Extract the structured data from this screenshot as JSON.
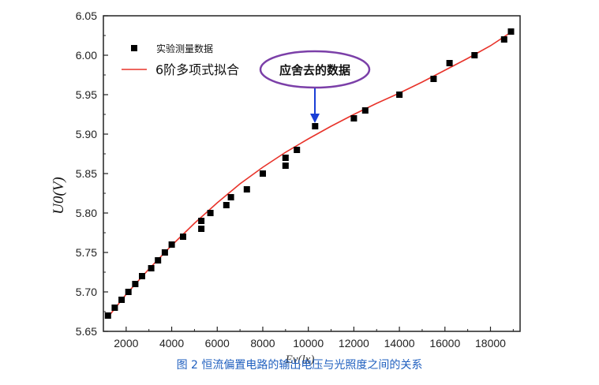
{
  "chart_data": {
    "type": "scatter",
    "xlim": [
      1000,
      19300
    ],
    "ylim": [
      5.65,
      6.05
    ],
    "x_ticks": [
      2000,
      4000,
      6000,
      8000,
      10000,
      12000,
      14000,
      16000,
      18000
    ],
    "y_ticks": [
      "5.65",
      "5.70",
      "5.75",
      "5.80",
      "5.85",
      "5.90",
      "5.95",
      "6.00",
      "6.05"
    ],
    "ylabel": "U0(V)",
    "xlabel": "Ev(lx)",
    "grid": false,
    "legend_position": "top-left",
    "series": [
      {
        "name": "实验测量数据",
        "marker": "square",
        "color": "#000000",
        "x": [
          1200,
          1500,
          1800,
          2100,
          2400,
          2700,
          3100,
          3400,
          3700,
          4000,
          4500,
          5300,
          5300,
          5700,
          6400,
          6600,
          7300,
          8000,
          9000,
          9000,
          9500,
          10300,
          12000,
          12500,
          14000,
          15500,
          16200,
          17300,
          18600,
          18900
        ],
        "y": [
          5.67,
          5.68,
          5.69,
          5.7,
          5.71,
          5.72,
          5.73,
          5.74,
          5.75,
          5.76,
          5.77,
          5.78,
          5.79,
          5.8,
          5.81,
          5.82,
          5.83,
          5.85,
          5.86,
          5.87,
          5.88,
          5.91,
          5.92,
          5.93,
          5.95,
          5.97,
          5.99,
          6.0,
          6.02,
          6.03
        ]
      },
      {
        "name": "6阶多项式拟合",
        "type": "line",
        "color": "#e8332a",
        "x": [
          1200,
          2000,
          3000,
          4000,
          5000,
          6000,
          7000,
          8000,
          9000,
          10000,
          11000,
          12000,
          13000,
          14000,
          15000,
          16000,
          17000,
          18000,
          19000
        ],
        "y": [
          5.668,
          5.697,
          5.729,
          5.759,
          5.787,
          5.813,
          5.837,
          5.858,
          5.877,
          5.894,
          5.91,
          5.925,
          5.939,
          5.952,
          5.966,
          5.981,
          5.996,
          6.012,
          6.031
        ]
      }
    ],
    "annotations": [
      {
        "text": "应舍去的数据",
        "x": 10300,
        "y": 5.91,
        "color": "#7b3fa8",
        "arrow_color": "#1a3fd6"
      }
    ]
  },
  "caption": "图 2  恒流偏置电路的输出电压与光照度之间的关系",
  "colors": {
    "fit_line": "#e8332a",
    "ellipse": "#7b3fa8",
    "arrow": "#1a3fd6",
    "caption": "#1f5fbf"
  }
}
